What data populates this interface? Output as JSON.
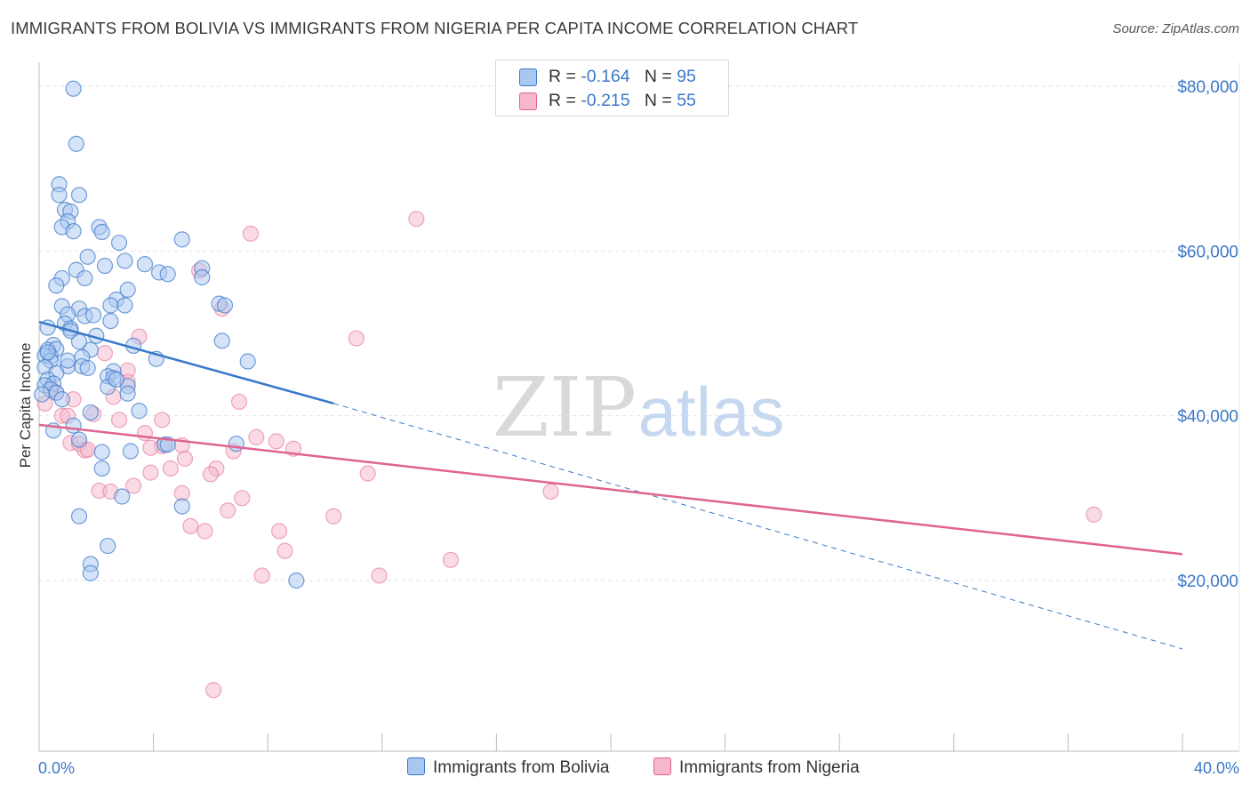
{
  "title": "IMMIGRANTS FROM BOLIVIA VS IMMIGRANTS FROM NIGERIA PER CAPITA INCOME CORRELATION CHART",
  "source": "Source: ZipAtlas.com",
  "watermark": {
    "zip": "ZIP",
    "atlas": "atlas"
  },
  "legend": {
    "rows": [
      {
        "r_label": "R = ",
        "r_value": "-0.164",
        "n_label": "N = ",
        "n_value": "95"
      },
      {
        "r_label": "R = ",
        "r_value": "-0.215",
        "n_label": "N = ",
        "n_value": "55"
      }
    ]
  },
  "chart_data": {
    "type": "scatter",
    "title": "IMMIGRANTS FROM BOLIVIA VS IMMIGRANTS FROM NIGERIA PER CAPITA INCOME CORRELATION CHART",
    "xlabel": "",
    "ylabel": "Per Capita Income",
    "xlim": [
      0,
      40
    ],
    "ylim": [
      0,
      84000
    ],
    "x_tick_labels": [
      "0.0%",
      "40.0%"
    ],
    "y_ticks": [
      20000,
      40000,
      60000,
      80000
    ],
    "y_tick_labels": [
      "$20,000",
      "$40,000",
      "$60,000",
      "$80,000"
    ],
    "grid": true,
    "legend_position": "bottom",
    "colors": {
      "bolivia": "#3a78c9",
      "nigeria": "#e0648f",
      "bolivia_fill": "#a9c8f0",
      "nigeria_fill": "#f6b8cb"
    },
    "series": [
      {
        "name": "Immigrants from Bolivia",
        "r": -0.164,
        "n": 95,
        "trend": {
          "x": [
            0,
            10.3
          ],
          "y": [
            51400,
            41500
          ],
          "dashed_to": [
            40,
            11700
          ]
        },
        "points": [
          [
            1.2,
            79700
          ],
          [
            1.3,
            73000
          ],
          [
            0.7,
            68100
          ],
          [
            0.7,
            66800
          ],
          [
            1.4,
            66800
          ],
          [
            0.9,
            65000
          ],
          [
            1.1,
            64800
          ],
          [
            1.0,
            63600
          ],
          [
            2.1,
            62900
          ],
          [
            0.8,
            62900
          ],
          [
            1.2,
            62400
          ],
          [
            2.2,
            62300
          ],
          [
            5.0,
            61400
          ],
          [
            2.8,
            61000
          ],
          [
            1.7,
            59300
          ],
          [
            3.0,
            58800
          ],
          [
            3.7,
            58400
          ],
          [
            2.3,
            58200
          ],
          [
            5.7,
            57900
          ],
          [
            1.3,
            57700
          ],
          [
            4.2,
            57400
          ],
          [
            4.5,
            57200
          ],
          [
            0.8,
            56700
          ],
          [
            1.6,
            56700
          ],
          [
            5.7,
            56800
          ],
          [
            0.6,
            55800
          ],
          [
            3.1,
            55300
          ],
          [
            2.7,
            54100
          ],
          [
            6.3,
            53600
          ],
          [
            6.5,
            53400
          ],
          [
            2.5,
            53400
          ],
          [
            0.8,
            53300
          ],
          [
            1.4,
            53000
          ],
          [
            3.0,
            53400
          ],
          [
            1.0,
            52300
          ],
          [
            1.6,
            52100
          ],
          [
            1.9,
            52200
          ],
          [
            2.5,
            51500
          ],
          [
            0.9,
            51200
          ],
          [
            1.1,
            50600
          ],
          [
            0.3,
            50700
          ],
          [
            1.1,
            50300
          ],
          [
            2.0,
            49700
          ],
          [
            6.4,
            49100
          ],
          [
            0.5,
            48600
          ],
          [
            3.3,
            48500
          ],
          [
            0.3,
            48000
          ],
          [
            0.6,
            48100
          ],
          [
            1.8,
            48000
          ],
          [
            0.4,
            47200
          ],
          [
            1.5,
            47100
          ],
          [
            0.2,
            47300
          ],
          [
            0.4,
            46700
          ],
          [
            4.1,
            46900
          ],
          [
            7.3,
            46600
          ],
          [
            0.2,
            45900
          ],
          [
            1.0,
            46000
          ],
          [
            1.5,
            46000
          ],
          [
            1.7,
            45800
          ],
          [
            0.6,
            45200
          ],
          [
            2.6,
            45400
          ],
          [
            2.4,
            44800
          ],
          [
            2.6,
            44600
          ],
          [
            0.3,
            44400
          ],
          [
            0.5,
            43900
          ],
          [
            0.2,
            43700
          ],
          [
            2.4,
            43500
          ],
          [
            3.1,
            43600
          ],
          [
            0.4,
            43200
          ],
          [
            0.6,
            42800
          ],
          [
            0.1,
            42600
          ],
          [
            3.1,
            42700
          ],
          [
            3.5,
            40600
          ],
          [
            1.8,
            40400
          ],
          [
            1.2,
            38800
          ],
          [
            0.5,
            38200
          ],
          [
            1.4,
            37100
          ],
          [
            4.4,
            36500
          ],
          [
            6.9,
            36600
          ],
          [
            2.2,
            35600
          ],
          [
            3.2,
            35700
          ],
          [
            2.2,
            33600
          ],
          [
            2.9,
            30200
          ],
          [
            5.0,
            29000
          ],
          [
            1.4,
            27800
          ],
          [
            2.4,
            24200
          ],
          [
            1.8,
            22000
          ],
          [
            1.8,
            20900
          ],
          [
            9.0,
            20000
          ],
          [
            4.5,
            36500
          ],
          [
            0.3,
            47700
          ],
          [
            1.0,
            46700
          ],
          [
            1.4,
            49000
          ],
          [
            2.7,
            44400
          ],
          [
            0.8,
            42000
          ]
        ]
      },
      {
        "name": "Immigrants from Nigeria",
        "r": -0.215,
        "n": 55,
        "trend": {
          "x": [
            0,
            40
          ],
          "y": [
            38900,
            23200
          ]
        },
        "points": [
          [
            13.2,
            63900
          ],
          [
            7.4,
            62100
          ],
          [
            5.6,
            57600
          ],
          [
            6.4,
            53000
          ],
          [
            3.5,
            49600
          ],
          [
            11.1,
            49400
          ],
          [
            2.3,
            47600
          ],
          [
            3.1,
            45500
          ],
          [
            3.1,
            44100
          ],
          [
            0.4,
            43500
          ],
          [
            0.6,
            42800
          ],
          [
            2.6,
            42300
          ],
          [
            1.2,
            42000
          ],
          [
            7.0,
            41700
          ],
          [
            0.8,
            40000
          ],
          [
            1.0,
            40000
          ],
          [
            1.9,
            40200
          ],
          [
            4.3,
            39500
          ],
          [
            2.8,
            39500
          ],
          [
            3.7,
            37900
          ],
          [
            7.6,
            37400
          ],
          [
            8.3,
            36900
          ],
          [
            1.1,
            36700
          ],
          [
            1.4,
            36600
          ],
          [
            5.0,
            36400
          ],
          [
            4.3,
            36300
          ],
          [
            3.9,
            36100
          ],
          [
            8.9,
            36000
          ],
          [
            1.6,
            35800
          ],
          [
            6.8,
            35700
          ],
          [
            5.1,
            34800
          ],
          [
            4.6,
            33600
          ],
          [
            6.2,
            33600
          ],
          [
            3.9,
            33100
          ],
          [
            11.5,
            33000
          ],
          [
            6.0,
            32900
          ],
          [
            3.3,
            31500
          ],
          [
            2.1,
            30900
          ],
          [
            2.5,
            30800
          ],
          [
            5.0,
            30600
          ],
          [
            17.9,
            30800
          ],
          [
            7.1,
            30000
          ],
          [
            6.6,
            28500
          ],
          [
            10.3,
            27800
          ],
          [
            36.9,
            28000
          ],
          [
            5.3,
            26600
          ],
          [
            5.8,
            26000
          ],
          [
            8.4,
            26000
          ],
          [
            8.6,
            23600
          ],
          [
            14.4,
            22500
          ],
          [
            7.8,
            20600
          ],
          [
            11.9,
            20600
          ],
          [
            6.1,
            6700
          ],
          [
            0.2,
            41500
          ],
          [
            1.7,
            35900
          ]
        ]
      }
    ]
  }
}
